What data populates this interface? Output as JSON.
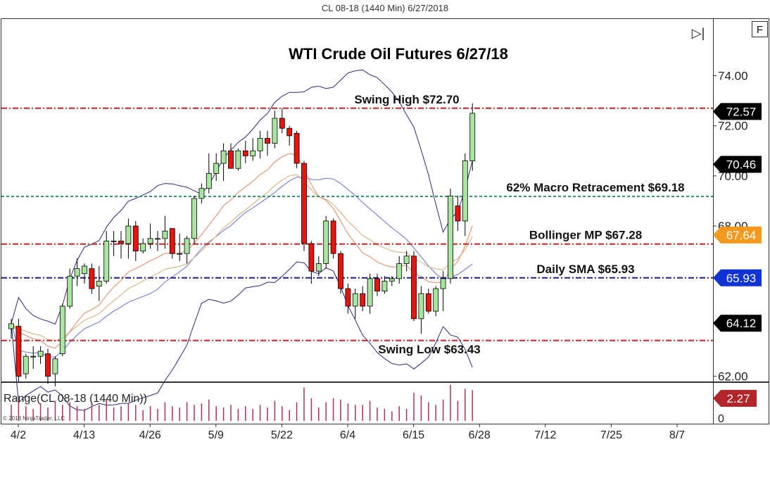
{
  "window_title": "CL 08-18 (1440 Min)  6/27/2018",
  "f_button_label": "F",
  "scroll_glyph": "▷|",
  "chart_data": [
    {
      "type": "candlestick",
      "title": "WTI Crude Oil Futures 6/27/18",
      "y_ticks": [
        {
          "value": 74,
          "label": "74.00"
        },
        {
          "value": 72,
          "label": "72.00"
        },
        {
          "value": 70,
          "label": "70.00"
        },
        {
          "value": 68,
          "label": "68.00"
        },
        {
          "value": 62,
          "label": "62.00"
        }
      ],
      "x_ticks": [
        {
          "index": 0,
          "label": "4/2"
        },
        {
          "index": 9,
          "label": "4/13"
        },
        {
          "index": 18,
          "label": "4/26"
        },
        {
          "index": 27,
          "label": "5/9"
        },
        {
          "index": 36,
          "label": "5/22"
        },
        {
          "index": 45,
          "label": "6/4"
        },
        {
          "index": 54,
          "label": "6/15"
        },
        {
          "index": 63,
          "label": "6/28"
        },
        {
          "index": 72,
          "label": "7/12"
        },
        {
          "index": 81,
          "label": "7/25"
        },
        {
          "index": 90,
          "label": "8/7"
        }
      ],
      "price_badges": [
        {
          "value": 72.57,
          "label": "72.57",
          "color": "#000000"
        },
        {
          "value": 70.46,
          "label": "70.46",
          "color": "#000000"
        },
        {
          "value": 67.64,
          "label": "67.64",
          "color": "#f39a1e"
        },
        {
          "value": 65.93,
          "label": "65.93",
          "color": "#1033d8"
        },
        {
          "value": 64.12,
          "label": "64.12",
          "color": "#000000"
        }
      ],
      "levels": [
        {
          "value": 72.7,
          "label": "Swing High $72.70",
          "color": "#cc2222"
        },
        {
          "value": 69.18,
          "label": "62% Macro Retracement $69.18",
          "color": "#2a8a6a"
        },
        {
          "value": 67.28,
          "label": "Bollinger MP $67.28",
          "color": "#cc2222"
        },
        {
          "value": 65.93,
          "label": "Daily SMA $65.93",
          "color": "#1a1a8c"
        },
        {
          "value": 63.43,
          "label": "Swing Low $63.43",
          "color": "#cc2222"
        }
      ],
      "candles": [
        {
          "o": 63.9,
          "h": 64.3,
          "l": 63.5,
          "c": 64.1
        },
        {
          "o": 64.0,
          "h": 64.3,
          "l": 61.8,
          "c": 62.0
        },
        {
          "o": 62.1,
          "h": 62.9,
          "l": 61.9,
          "c": 62.8
        },
        {
          "o": 62.8,
          "h": 63.2,
          "l": 62.3,
          "c": 62.8
        },
        {
          "o": 62.8,
          "h": 63.2,
          "l": 62.5,
          "c": 63.0
        },
        {
          "o": 62.9,
          "h": 63.1,
          "l": 61.7,
          "c": 62.0
        },
        {
          "o": 62.1,
          "h": 62.8,
          "l": 61.6,
          "c": 62.7
        },
        {
          "o": 62.9,
          "h": 64.9,
          "l": 62.8,
          "c": 64.8
        },
        {
          "o": 64.8,
          "h": 66.3,
          "l": 64.7,
          "c": 66.0
        },
        {
          "o": 66.0,
          "h": 66.7,
          "l": 65.6,
          "c": 66.3
        },
        {
          "o": 66.1,
          "h": 66.5,
          "l": 65.7,
          "c": 66.4
        },
        {
          "o": 66.3,
          "h": 66.5,
          "l": 65.3,
          "c": 65.5
        },
        {
          "o": 65.6,
          "h": 66.4,
          "l": 65.0,
          "c": 65.8
        },
        {
          "o": 65.8,
          "h": 67.8,
          "l": 65.7,
          "c": 67.4
        },
        {
          "o": 67.4,
          "h": 67.8,
          "l": 66.8,
          "c": 67.4
        },
        {
          "o": 67.4,
          "h": 67.8,
          "l": 66.7,
          "c": 67.3
        },
        {
          "o": 67.3,
          "h": 68.3,
          "l": 66.7,
          "c": 68.0
        },
        {
          "o": 68.0,
          "h": 68.2,
          "l": 66.6,
          "c": 67.0
        },
        {
          "o": 67.0,
          "h": 67.5,
          "l": 66.9,
          "c": 67.3
        },
        {
          "o": 67.3,
          "h": 68.1,
          "l": 67.1,
          "c": 67.5
        },
        {
          "o": 67.5,
          "h": 67.8,
          "l": 67.0,
          "c": 67.5
        },
        {
          "o": 67.5,
          "h": 68.4,
          "l": 67.1,
          "c": 67.8
        },
        {
          "o": 67.9,
          "h": 67.9,
          "l": 66.7,
          "c": 66.9
        },
        {
          "o": 66.9,
          "h": 67.7,
          "l": 66.6,
          "c": 66.9
        },
        {
          "o": 66.9,
          "h": 67.6,
          "l": 66.5,
          "c": 67.5
        },
        {
          "o": 67.5,
          "h": 69.2,
          "l": 67.3,
          "c": 69.1
        },
        {
          "o": 69.1,
          "h": 69.7,
          "l": 68.9,
          "c": 69.5
        },
        {
          "o": 69.5,
          "h": 70.9,
          "l": 69.3,
          "c": 70.1
        },
        {
          "o": 70.1,
          "h": 70.9,
          "l": 69.8,
          "c": 70.5
        },
        {
          "o": 70.5,
          "h": 71.3,
          "l": 69.8,
          "c": 71.0
        },
        {
          "o": 71.0,
          "h": 71.3,
          "l": 70.3,
          "c": 70.3
        },
        {
          "o": 70.3,
          "h": 71.1,
          "l": 70.2,
          "c": 71.0
        },
        {
          "o": 71.0,
          "h": 71.4,
          "l": 70.5,
          "c": 70.8
        },
        {
          "o": 70.8,
          "h": 71.5,
          "l": 70.6,
          "c": 71.0
        },
        {
          "o": 71.0,
          "h": 71.8,
          "l": 70.7,
          "c": 71.5
        },
        {
          "o": 71.5,
          "h": 71.8,
          "l": 70.8,
          "c": 71.3
        },
        {
          "o": 71.3,
          "h": 72.6,
          "l": 71.1,
          "c": 72.3
        },
        {
          "o": 72.3,
          "h": 72.7,
          "l": 71.7,
          "c": 71.9
        },
        {
          "o": 71.9,
          "h": 72.0,
          "l": 71.2,
          "c": 71.6
        },
        {
          "o": 71.7,
          "h": 71.8,
          "l": 70.3,
          "c": 70.5
        },
        {
          "o": 70.5,
          "h": 70.6,
          "l": 67.0,
          "c": 67.3
        },
        {
          "o": 67.3,
          "h": 67.4,
          "l": 65.7,
          "c": 66.2
        },
        {
          "o": 66.2,
          "h": 66.8,
          "l": 66.0,
          "c": 66.5
        },
        {
          "o": 66.5,
          "h": 68.4,
          "l": 66.3,
          "c": 68.2
        },
        {
          "o": 68.2,
          "h": 68.3,
          "l": 66.7,
          "c": 66.9
        },
        {
          "o": 66.9,
          "h": 67.0,
          "l": 65.3,
          "c": 65.5
        },
        {
          "o": 65.5,
          "h": 65.7,
          "l": 64.5,
          "c": 64.8
        },
        {
          "o": 64.8,
          "h": 65.5,
          "l": 64.3,
          "c": 65.3
        },
        {
          "o": 65.3,
          "h": 65.6,
          "l": 64.6,
          "c": 64.8
        },
        {
          "o": 64.8,
          "h": 66.1,
          "l": 64.5,
          "c": 65.9
        },
        {
          "o": 65.9,
          "h": 66.1,
          "l": 65.2,
          "c": 65.4
        },
        {
          "o": 65.4,
          "h": 66.0,
          "l": 65.3,
          "c": 65.8
        },
        {
          "o": 65.8,
          "h": 66.0,
          "l": 65.6,
          "c": 65.9
        },
        {
          "o": 65.9,
          "h": 66.8,
          "l": 65.7,
          "c": 66.5
        },
        {
          "o": 66.5,
          "h": 67.0,
          "l": 66.2,
          "c": 66.8
        },
        {
          "o": 66.8,
          "h": 67.0,
          "l": 64.2,
          "c": 64.3
        },
        {
          "o": 64.3,
          "h": 65.6,
          "l": 63.7,
          "c": 65.3
        },
        {
          "o": 65.3,
          "h": 65.5,
          "l": 64.5,
          "c": 64.6
        },
        {
          "o": 64.6,
          "h": 65.6,
          "l": 64.4,
          "c": 65.5
        },
        {
          "o": 65.5,
          "h": 66.2,
          "l": 64.6,
          "c": 65.9
        },
        {
          "o": 65.9,
          "h": 69.5,
          "l": 65.7,
          "c": 69.2
        },
        {
          "o": 68.8,
          "h": 69.2,
          "l": 67.8,
          "c": 68.2
        },
        {
          "o": 68.2,
          "h": 70.9,
          "l": 67.6,
          "c": 70.6
        },
        {
          "o": 70.6,
          "h": 72.9,
          "l": 70.2,
          "c": 72.5
        }
      ],
      "range_indicator": {
        "label": "Range(CL 08-18 (1440 Min))",
        "axis_label": "0",
        "badge": "2.27",
        "values": [
          1.2,
          1.6,
          1.1,
          0.9,
          1.3,
          1.0,
          1.5,
          1.2,
          1.4,
          1.1,
          0.9,
          1.3,
          1.2,
          1.6,
          1.0,
          1.1,
          1.3,
          1.2,
          0.8,
          1.1,
          0.9,
          1.4,
          1.1,
          1.0,
          1.4,
          1.2,
          1.3,
          1.6,
          1.1,
          1.0,
          1.2,
          0.9,
          1.1,
          0.9,
          1.2,
          1.0,
          1.5,
          1.1,
          0.8,
          1.4,
          2.5,
          1.7,
          1.0,
          1.4,
          1.7,
          1.6,
          1.3,
          1.2,
          1.2,
          1.5,
          1.0,
          0.9,
          0.7,
          1.1,
          0.9,
          2.1,
          1.9,
          1.4,
          1.2,
          1.6,
          2.7,
          1.5,
          2.4,
          2.3
        ]
      },
      "copyright": "© 2018 NinjaTrader, LLC"
    }
  ]
}
